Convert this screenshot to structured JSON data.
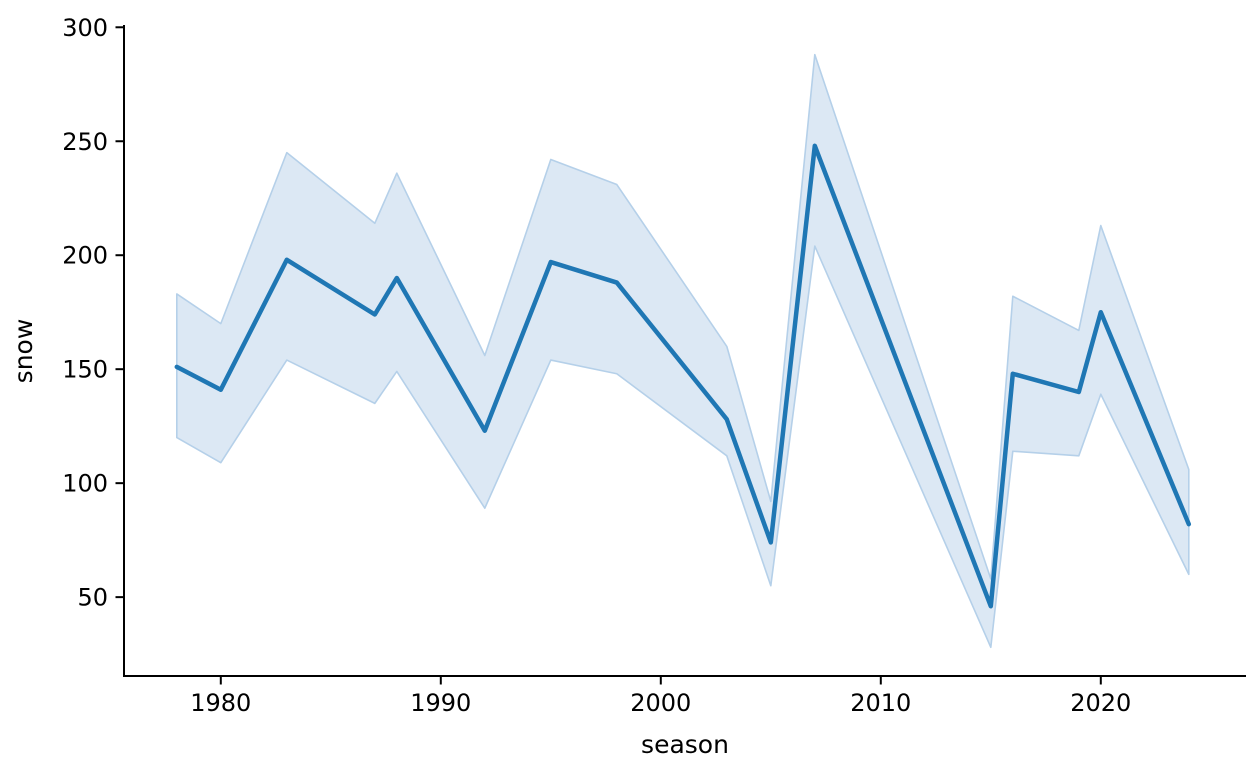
{
  "figure": {
    "background": "#ffffff"
  },
  "chart_data": {
    "type": "line",
    "title": "",
    "xlabel": "season",
    "ylabel": "snow",
    "x": [
      1978,
      1980,
      1983,
      1987,
      1988,
      1992,
      1995,
      1998,
      2003,
      2005,
      2007,
      2015,
      2016,
      2019,
      2020,
      2024
    ],
    "series": [
      {
        "name": "snow",
        "values": [
          151,
          141,
          198,
          174,
          190,
          123,
          197,
          188,
          128,
          74,
          248,
          46,
          148,
          140,
          175,
          82
        ],
        "ci_lower": [
          120,
          109,
          154,
          135,
          149,
          89,
          154,
          148,
          112,
          55,
          204,
          28,
          114,
          112,
          139,
          60
        ],
        "ci_upper": [
          183,
          170,
          245,
          214,
          236,
          156,
          242,
          231,
          160,
          92,
          288,
          58,
          182,
          167,
          213,
          106
        ]
      }
    ],
    "xticks": [
      1980,
      1990,
      2000,
      2010,
      2020
    ],
    "yticks": [
      50,
      100,
      150,
      200,
      250,
      300
    ],
    "xlim": [
      1975.6,
      2026.6
    ],
    "ylim": [
      15.4,
      301
    ],
    "grid": false,
    "legend": "none",
    "colors": {
      "line": "#1f77b4",
      "band_fill": "#dce8f4",
      "band_edge": "#b5d0e9",
      "axis": "#000000",
      "text": "#000000"
    }
  }
}
